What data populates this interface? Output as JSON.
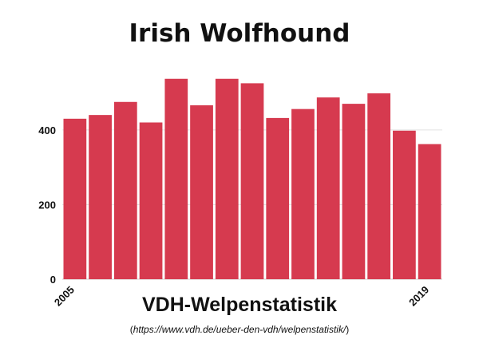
{
  "chart_data": {
    "type": "bar",
    "title": "Irish Wolfhound",
    "categories": [
      "2005",
      "2006",
      "2007",
      "2008",
      "2009",
      "2010",
      "2011",
      "2012",
      "2013",
      "2014",
      "2015",
      "2016",
      "2017",
      "2018",
      "2019"
    ],
    "values": [
      430,
      440,
      475,
      420,
      537,
      466,
      537,
      525,
      432,
      456,
      487,
      470,
      498,
      398,
      362
    ],
    "x_tick_labels": [
      "2005",
      "2019"
    ],
    "y_ticks": [
      0,
      200,
      400
    ],
    "ylim": [
      0,
      560
    ],
    "grid": true,
    "bar_color": "#d63a4f"
  },
  "footer": {
    "source_title": "VDH-Welpenstatistik",
    "paren_open": "(",
    "url": "https://www.vdh.de/ueber-den-vdh/welpenstatistik/",
    "paren_close": ")"
  }
}
